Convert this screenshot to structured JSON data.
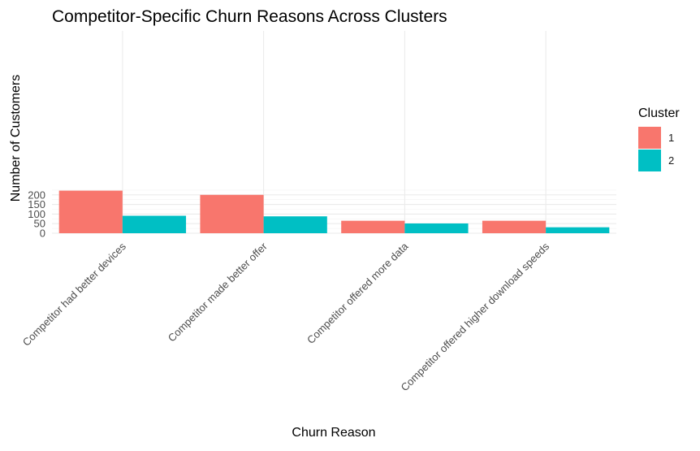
{
  "chart_data": {
    "type": "bar",
    "title": "Competitor-Specific Churn Reasons Across Clusters",
    "xlabel": "Churn Reason",
    "ylabel": "Number of Customers",
    "categories": [
      "Competitor had better devices",
      "Competitor made better offer",
      "Competitor offered more data",
      "Competitor offered higher download speeds"
    ],
    "series": [
      {
        "name": "1",
        "values": [
          222,
          200,
          65,
          65
        ],
        "color": "#F8766D"
      },
      {
        "name": "2",
        "values": [
          91,
          88,
          51,
          31
        ],
        "color": "#00BFC4"
      }
    ],
    "ylim": [
      0,
      225
    ],
    "yticks": [
      0,
      50,
      100,
      150,
      200
    ],
    "grid": true,
    "legend": {
      "title": "Cluster",
      "position": "right"
    }
  }
}
